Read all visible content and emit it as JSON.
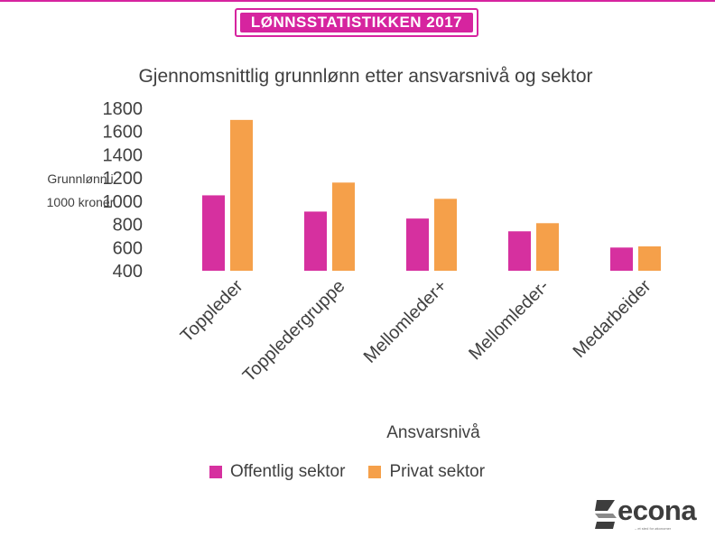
{
  "banner": {
    "title": "LØNNSSTATISTIKKEN 2017"
  },
  "colors": {
    "accent": "#d6249f",
    "offentlig": "#d6309f",
    "privat": "#f5a04a"
  },
  "chart_data": {
    "type": "bar",
    "title": "Gjennomsnittlig grunnlønn etter ansvarsnivå og sektor",
    "xlabel": "Ansvarsnivå",
    "ylabel_lines": [
      "Grunnlønn i",
      "1000 kroner"
    ],
    "categories": [
      "Toppleder",
      "Toppledergruppe",
      "Mellomleder+",
      "Mellomleder-",
      "Medarbeider"
    ],
    "series": [
      {
        "name": "Offentlig sektor",
        "color": "#d6309f",
        "values": [
          1050,
          910,
          850,
          740,
          600
        ]
      },
      {
        "name": "Privat sektor",
        "color": "#f5a04a",
        "values": [
          1700,
          1160,
          1020,
          810,
          610
        ]
      }
    ],
    "ylim": [
      400,
      1800
    ],
    "yticks": [
      400,
      600,
      800,
      1000,
      1200,
      1400,
      1600,
      1800
    ],
    "grid": false,
    "legend_position": "bottom"
  },
  "logo": {
    "text": "econa",
    "icon": "econa-logo-icon",
    "tagline": "– et sted for økonomer"
  }
}
